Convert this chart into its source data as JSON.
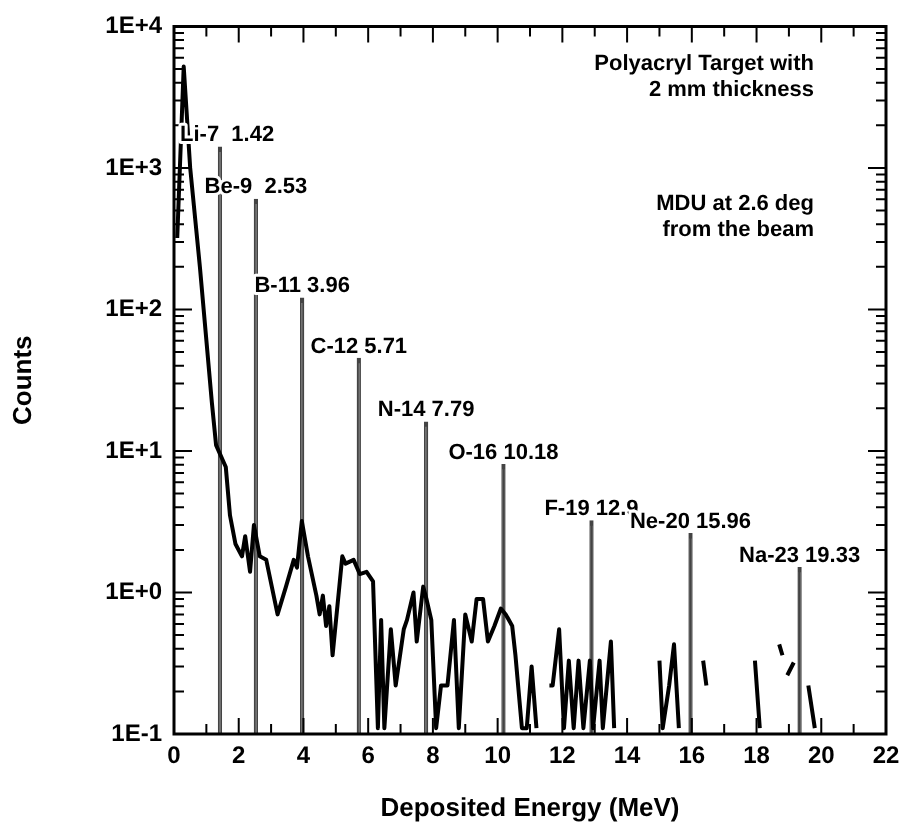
{
  "chart_data": {
    "type": "line",
    "xlabel": "Deposited Energy (MeV)",
    "ylabel": "Counts",
    "log": "y",
    "grid": false,
    "legend": false,
    "marker": "none",
    "line_style": "solid",
    "xlim": [
      0,
      22
    ],
    "ylim": [
      0.1,
      10000
    ],
    "xticks": [
      0,
      {
        "value": 1,
        "label": null
      },
      2,
      {
        "value": 3,
        "label": null
      },
      4,
      {
        "value": 5,
        "label": null
      },
      6,
      {
        "value": 7,
        "label": null
      },
      8,
      {
        "value": 9,
        "label": null
      },
      10,
      {
        "value": 11,
        "label": null
      },
      12,
      {
        "value": 13,
        "label": null
      },
      14,
      {
        "value": 15,
        "label": null
      },
      16,
      {
        "value": 17,
        "label": null
      },
      18,
      {
        "value": 19,
        "label": null
      },
      20,
      {
        "value": 21,
        "label": null
      },
      22
    ],
    "yticks": [
      {
        "value": 0.1,
        "label": "1E-1"
      },
      {
        "value": 0.2,
        "label": null
      },
      {
        "value": 0.3,
        "label": null
      },
      {
        "value": 0.4,
        "label": null
      },
      {
        "value": 0.5,
        "label": null
      },
      {
        "value": 0.6,
        "label": null
      },
      {
        "value": 0.7,
        "label": null
      },
      {
        "value": 0.8,
        "label": null
      },
      {
        "value": 0.9,
        "label": null
      },
      {
        "value": 1,
        "label": "1E+0"
      },
      {
        "value": 2,
        "label": null
      },
      {
        "value": 3,
        "label": null
      },
      {
        "value": 4,
        "label": null
      },
      {
        "value": 5,
        "label": null
      },
      {
        "value": 6,
        "label": null
      },
      {
        "value": 7,
        "label": null
      },
      {
        "value": 8,
        "label": null
      },
      {
        "value": 9,
        "label": null
      },
      {
        "value": 10,
        "label": "1E+1"
      },
      {
        "value": 20,
        "label": null
      },
      {
        "value": 30,
        "label": null
      },
      {
        "value": 40,
        "label": null
      },
      {
        "value": 50,
        "label": null
      },
      {
        "value": 60,
        "label": null
      },
      {
        "value": 70,
        "label": null
      },
      {
        "value": 80,
        "label": null
      },
      {
        "value": 90,
        "label": null
      },
      {
        "value": 100,
        "label": "1E+2"
      },
      {
        "value": 200,
        "label": null
      },
      {
        "value": 300,
        "label": null
      },
      {
        "value": 400,
        "label": null
      },
      {
        "value": 500,
        "label": null
      },
      {
        "value": 600,
        "label": null
      },
      {
        "value": 700,
        "label": null
      },
      {
        "value": 800,
        "label": null
      },
      {
        "value": 900,
        "label": null
      },
      {
        "value": 1000,
        "label": "1E+3"
      },
      {
        "value": 2000,
        "label": null
      },
      {
        "value": 3000,
        "label": null
      },
      {
        "value": 4000,
        "label": null
      },
      {
        "value": 5000,
        "label": null
      },
      {
        "value": 6000,
        "label": null
      },
      {
        "value": 7000,
        "label": null
      },
      {
        "value": 8000,
        "label": null
      },
      {
        "value": 9000,
        "label": null
      },
      {
        "value": 10000,
        "label": "1E+4"
      }
    ],
    "series": [
      {
        "color": "#000000",
        "x": [
          0.1,
          0.3,
          0.5,
          0.8,
          1.17,
          1.3,
          1.6,
          1.73,
          1.9,
          2.1,
          2.2,
          2.35,
          2.47,
          2.65,
          2.85,
          3.2,
          3.46,
          3.7,
          3.8,
          3.95,
          4.14,
          4.4,
          4.5,
          4.6,
          4.7,
          4.8,
          4.9,
          5.2,
          5.3,
          5.55,
          5.74,
          5.95,
          6.15,
          6.3,
          6.4,
          6.5,
          6.7,
          6.85,
          7.1,
          7.2,
          7.4,
          7.5,
          7.7,
          7.8,
          7.95,
          8.1,
          8.25,
          8.45,
          8.65,
          8.8,
          9.0,
          9.2,
          9.35,
          9.55,
          9.7,
          9.9,
          10.1,
          10.25,
          10.45,
          10.55,
          10.75,
          10.9,
          11.05,
          11.2,
          11.4,
          11.6,
          11.7,
          11.9,
          12.05,
          12.2,
          12.35,
          12.5,
          12.65,
          12.85,
          12.95,
          13.15,
          13.25,
          13.5,
          13.6,
          14.3,
          15.0,
          15.1,
          15.3,
          15.45,
          15.6,
          16.0,
          16.35,
          16.45,
          17.2,
          17.95,
          18.1,
          18.4,
          18.7,
          18.8,
          18.9,
          18.95,
          19.15,
          19.35,
          19.6,
          19.8
        ],
        "values": [
          320,
          5200,
          1000,
          200,
          22,
          11,
          7.7,
          3.5,
          2.2,
          1.8,
          2.5,
          1.4,
          3,
          1.8,
          1.7,
          0.7,
          1.1,
          1.7,
          1.5,
          3.2,
          1.8,
          0.95,
          0.7,
          0.95,
          0.58,
          0.8,
          0.36,
          1.8,
          1.6,
          1.7,
          1.35,
          1.4,
          1.2,
          0.11,
          0.64,
          0.11,
          0.55,
          0.22,
          0.55,
          0.64,
          1.0,
          0.45,
          1.1,
          0.9,
          0.64,
          0.11,
          0.22,
          0.22,
          0.64,
          0.11,
          0.7,
          0.45,
          0.9,
          0.9,
          0.45,
          0.58,
          0.77,
          0.7,
          0.58,
          0.36,
          0.11,
          0.11,
          0.3,
          0.11,
          null,
          0.22,
          0.22,
          0.55,
          0.11,
          0.33,
          0.11,
          0.33,
          0.11,
          0.33,
          0.11,
          0.33,
          0.11,
          0.45,
          0.11,
          null,
          0.33,
          0.11,
          0.22,
          0.43,
          0.11,
          null,
          0.33,
          0.22,
          null,
          0.33,
          0.11,
          null,
          0.43,
          0.36,
          null,
          0.26,
          0.32,
          null,
          0.22,
          0.11
        ]
      },
      {
        "type": "bar",
        "color": "#444444",
        "x": [
          1.42,
          2.53,
          3.96,
          5.71,
          7.79,
          10.18,
          12.9,
          15.96,
          19.33
        ],
        "values": [
          1400,
          600,
          120,
          45,
          16,
          8,
          3.2,
          2.6,
          1.5
        ],
        "value_labels": [
          "Li-7  1.42",
          "Be-9  2.53",
          "B-11 3.96",
          "C-12 5.71",
          "N-14 7.79",
          "O-16 10.18",
          "F-19 12.9",
          "Ne-20 15.96",
          "Na-23 19.33"
        ]
      }
    ],
    "annotations": [
      "Polyacryl Target with\n 2 mm thickness",
      "MDU at 2.6 deg\nfrom the beam"
    ]
  }
}
